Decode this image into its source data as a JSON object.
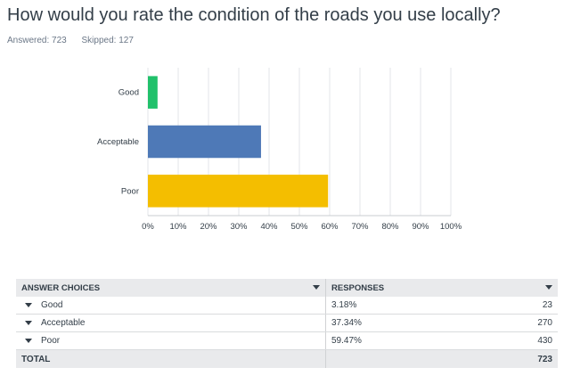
{
  "question": {
    "title": "How would you rate the condition of the roads you use locally?",
    "answered_label": "Answered: 723",
    "skipped_label": "Skipped: 127"
  },
  "chart_data": {
    "type": "bar",
    "orientation": "horizontal",
    "categories": [
      "Good",
      "Acceptable",
      "Poor"
    ],
    "values": [
      3.18,
      37.34,
      59.47
    ],
    "colors": [
      "#21c16b",
      "#4e79b7",
      "#f4be00"
    ],
    "xlim": [
      0,
      100
    ],
    "xticks": [
      "0%",
      "10%",
      "20%",
      "30%",
      "40%",
      "50%",
      "60%",
      "70%",
      "80%",
      "90%",
      "100%"
    ],
    "grid": true
  },
  "table": {
    "headers": {
      "choices": "ANSWER CHOICES",
      "responses": "RESPONSES"
    },
    "rows": [
      {
        "choice": "Good",
        "percent": "3.18%",
        "count": "23"
      },
      {
        "choice": "Acceptable",
        "percent": "37.34%",
        "count": "270"
      },
      {
        "choice": "Poor",
        "percent": "59.47%",
        "count": "430"
      }
    ],
    "total_label": "TOTAL",
    "total_value": "723"
  }
}
